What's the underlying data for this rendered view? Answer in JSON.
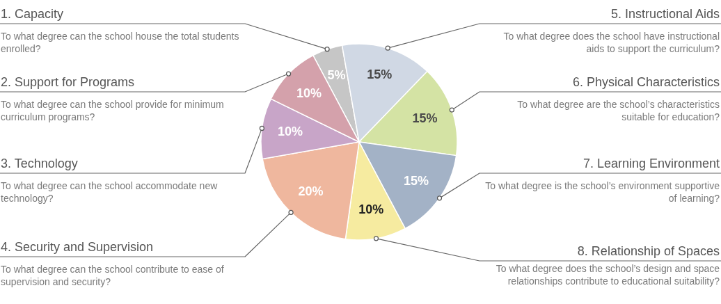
{
  "chart_data": {
    "type": "pie",
    "categories": [
      "1. Capacity",
      "5. Instructional Aids",
      "6. Physical Characteristics",
      "7. Learning Environment",
      "8. Relationship of Spaces",
      "4. Security and Supervision",
      "3. Technology",
      "2. Support for Programs"
    ],
    "values": [
      5,
      15,
      15,
      15,
      10,
      20,
      10,
      10
    ],
    "value_labels": [
      "5%",
      "15%",
      "15%",
      "15%",
      "10%",
      "20%",
      "10%",
      "10%"
    ],
    "colors": [
      "#c6c6c6",
      "#d0d8e4",
      "#d4e3a4",
      "#a3b2c6",
      "#f6eba0",
      "#efb79e",
      "#c8a5c8",
      "#d4a1ab"
    ],
    "annotations": [
      "To what degree can the school house the total students enrolled?",
      "To what degree does the school have instructional aids to support the curriculum?",
      "To what degree are the school’s characteristics suitable for education?",
      "To what degree is the school’s environment supportive of learning?",
      "To what degree does the school’s design and space relationships contribute to educational suitability?",
      "To what degree can the school contribute to ease of supervision and security?",
      "To what degree can the school accommodate new technology?",
      "To what degree can the school provide for minimum curriculum programs?"
    ]
  }
}
